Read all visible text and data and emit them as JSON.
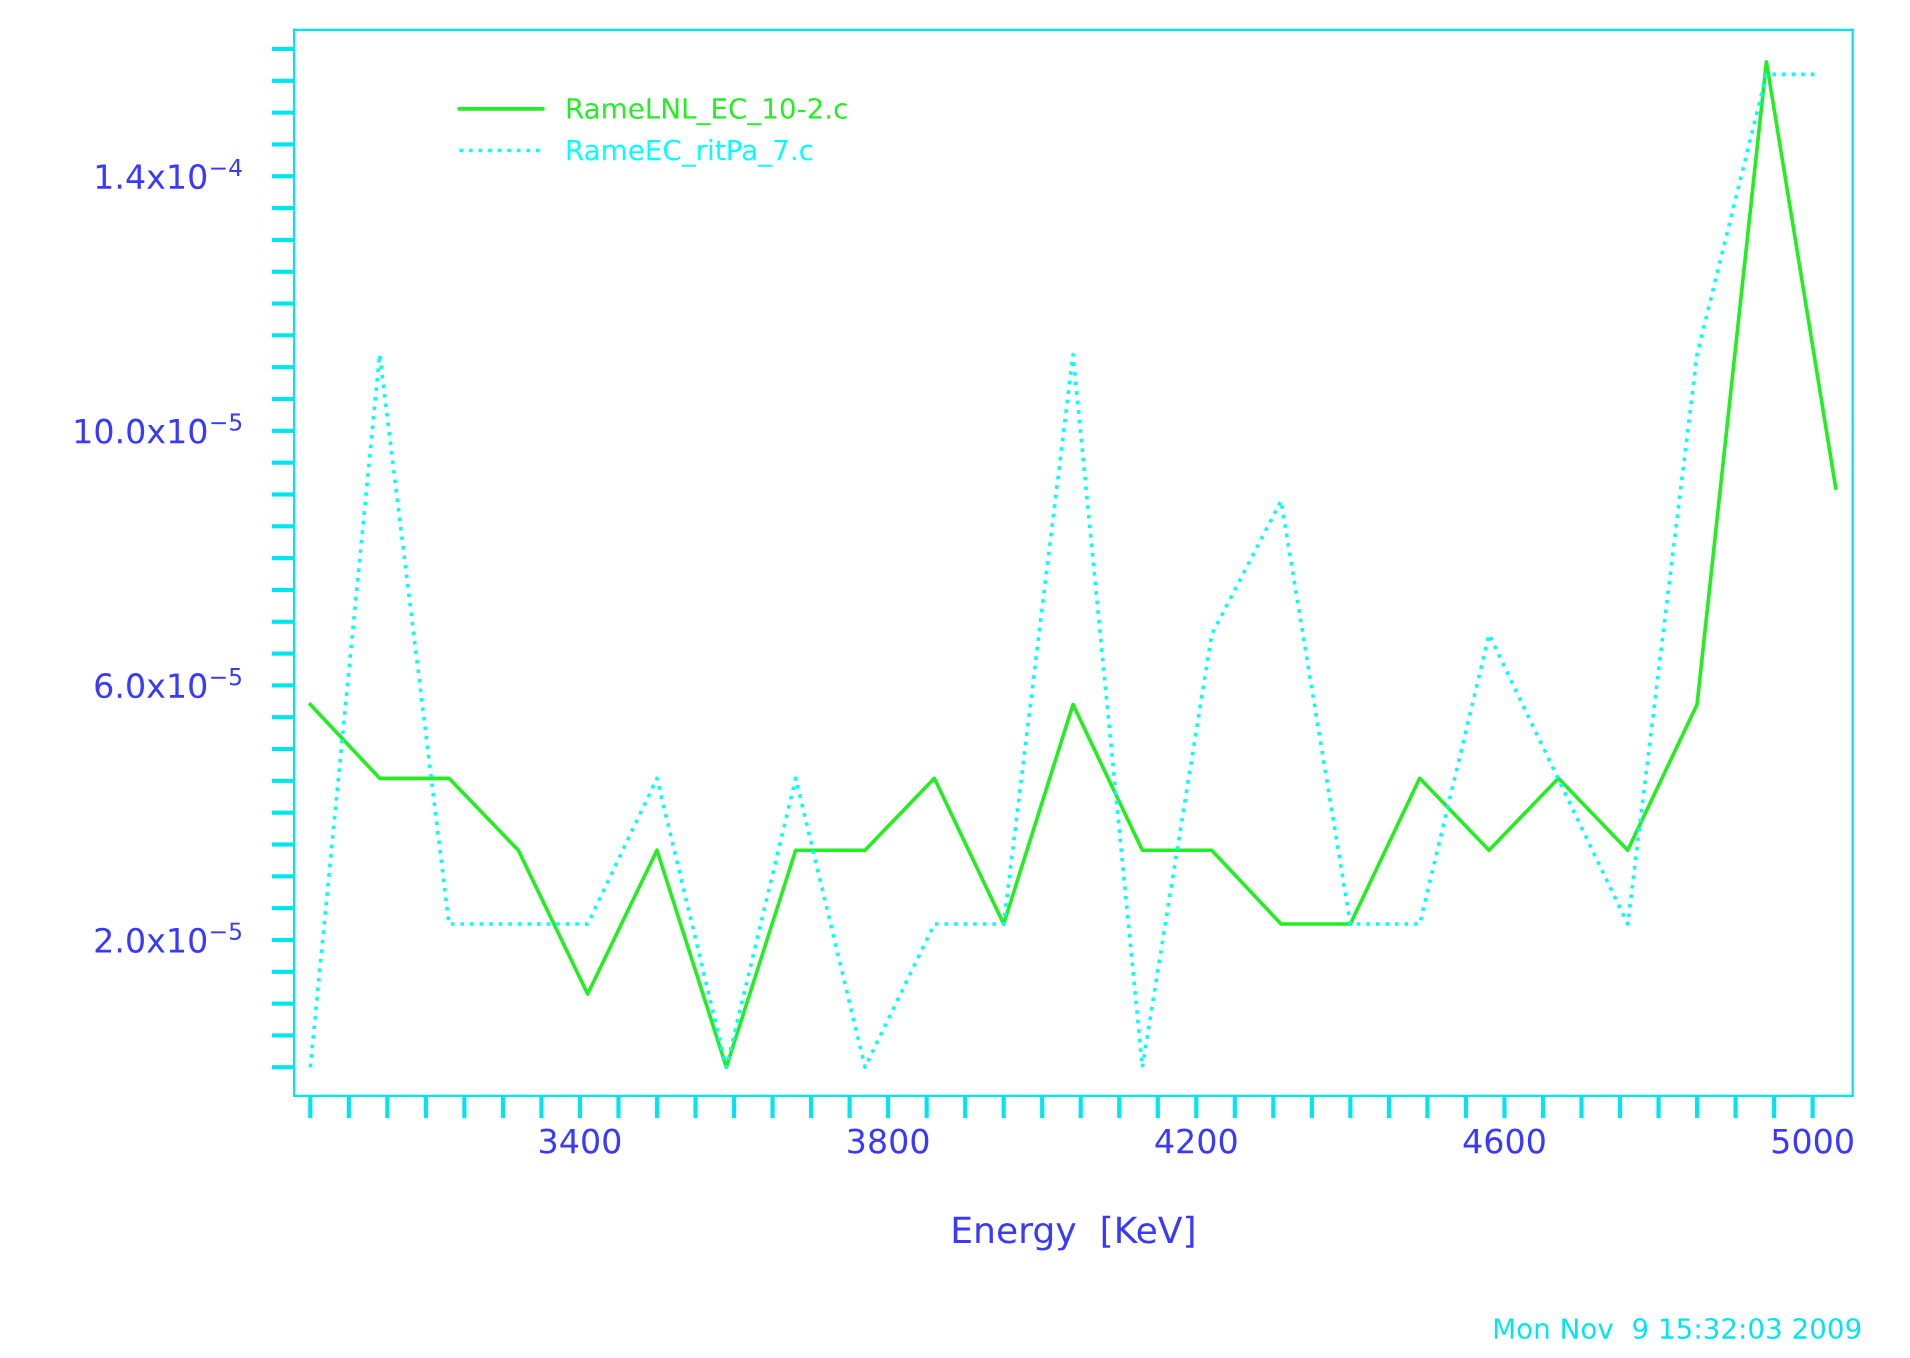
{
  "chart_data": {
    "type": "line",
    "xlabel": "Energy  [KeV]",
    "x": [
      3050,
      3140,
      3230,
      3320,
      3410,
      3500,
      3590,
      3680,
      3770,
      3860,
      3950,
      4040,
      4130,
      4220,
      4310,
      4400,
      4490,
      4580,
      4670,
      4760,
      4850,
      4940,
      5030
    ],
    "series": [
      {
        "name": "RameLNL_EC_10-2.c",
        "color": "#22ee22",
        "line_style": "solid",
        "values": [
          5.7e-05,
          4.54e-05,
          4.54e-05,
          3.41e-05,
          1.15e-05,
          3.41e-05,
          0,
          3.41e-05,
          3.41e-05,
          4.54e-05,
          2.25e-05,
          5.7e-05,
          3.41e-05,
          3.41e-05,
          2.25e-05,
          2.25e-05,
          4.54e-05,
          3.41e-05,
          4.54e-05,
          3.41e-05,
          5.7e-05,
          0.000158,
          9.1e-05
        ]
      },
      {
        "name": "RameEC_ritPa_7.c",
        "color": "#00ffff",
        "line_style": "dotted",
        "x": [
          3050,
          3140,
          3230,
          3320,
          3410,
          3500,
          3590,
          3680,
          3770,
          3860,
          3950,
          4040,
          4130,
          4220,
          4310,
          4400,
          4490,
          4580,
          4760,
          4850,
          4940,
          5010
        ],
        "values": [
          0,
          0.000112,
          2.25e-05,
          2.25e-05,
          2.25e-05,
          4.54e-05,
          0,
          4.54e-05,
          0,
          2.25e-05,
          2.25e-05,
          0.000112,
          0,
          6.8e-05,
          8.9e-05,
          2.25e-05,
          2.25e-05,
          6.8e-05,
          2.25e-05,
          0.000112,
          0.000156,
          0.000156
        ]
      }
    ],
    "xlim": [
      3029,
      5052
    ],
    "xticks": [
      {
        "value": 3050,
        "label": null
      },
      {
        "value": 3100,
        "label": null
      },
      {
        "value": 3150,
        "label": null
      },
      {
        "value": 3200,
        "label": null
      },
      {
        "value": 3250,
        "label": null
      },
      {
        "value": 3300,
        "label": null
      },
      {
        "value": 3350,
        "label": null
      },
      3400,
      {
        "value": 3450,
        "label": null
      },
      {
        "value": 3500,
        "label": null
      },
      {
        "value": 3550,
        "label": null
      },
      {
        "value": 3600,
        "label": null
      },
      {
        "value": 3650,
        "label": null
      },
      {
        "value": 3700,
        "label": null
      },
      {
        "value": 3750,
        "label": null
      },
      3800,
      {
        "value": 3850,
        "label": null
      },
      {
        "value": 3900,
        "label": null
      },
      {
        "value": 3950,
        "label": null
      },
      {
        "value": 4000,
        "label": null
      },
      {
        "value": 4050,
        "label": null
      },
      {
        "value": 4100,
        "label": null
      },
      {
        "value": 4150,
        "label": null
      },
      4200,
      {
        "value": 4250,
        "label": null
      },
      {
        "value": 4300,
        "label": null
      },
      {
        "value": 4350,
        "label": null
      },
      {
        "value": 4400,
        "label": null
      },
      {
        "value": 4450,
        "label": null
      },
      {
        "value": 4500,
        "label": null
      },
      {
        "value": 4550,
        "label": null
      },
      4600,
      {
        "value": 4650,
        "label": null
      },
      {
        "value": 4700,
        "label": null
      },
      {
        "value": 4750,
        "label": null
      },
      {
        "value": 4800,
        "label": null
      },
      {
        "value": 4850,
        "label": null
      },
      {
        "value": 4900,
        "label": null
      },
      {
        "value": 4950,
        "label": null
      },
      5000
    ],
    "ylim": [
      -4.5e-06,
      0.000163
    ],
    "yticks": [
      {
        "value": 0,
        "label": null
      },
      {
        "value": 5e-06,
        "label": null
      },
      {
        "value": 1e-05,
        "label": null
      },
      {
        "value": 1.5e-05,
        "label": null
      },
      {
        "value": 2e-05,
        "label": "2.0x10$^{−5}$"
      },
      {
        "value": 2.5e-05,
        "label": null
      },
      {
        "value": 3e-05,
        "label": null
      },
      {
        "value": 3.5e-05,
        "label": null
      },
      {
        "value": 4e-05,
        "label": null
      },
      {
        "value": 4.5e-05,
        "label": null
      },
      {
        "value": 5e-05,
        "label": null
      },
      {
        "value": 5.5e-05,
        "label": null
      },
      {
        "value": 6e-05,
        "label": "6.0x10$^{−5}$"
      },
      {
        "value": 6.5e-05,
        "label": null
      },
      {
        "value": 7e-05,
        "label": null
      },
      {
        "value": 7.5e-05,
        "label": null
      },
      {
        "value": 8e-05,
        "label": null
      },
      {
        "value": 8.5e-05,
        "label": null
      },
      {
        "value": 9e-05,
        "label": null
      },
      {
        "value": 9.5e-05,
        "label": null
      },
      {
        "value": 0.0001,
        "label": "10.0x10$^{−5}$"
      },
      {
        "value": 0.000105,
        "label": null
      },
      {
        "value": 0.00011,
        "label": null
      },
      {
        "value": 0.000115,
        "label": null
      },
      {
        "value": 0.00012,
        "label": null
      },
      {
        "value": 0.000125,
        "label": null
      },
      {
        "value": 0.00013,
        "label": null
      },
      {
        "value": 0.000135,
        "label": null
      },
      {
        "value": 0.00014,
        "label": "1.4x10$^{−4}$"
      },
      {
        "value": 0.000145,
        "label": null
      },
      {
        "value": 0.00015,
        "label": null
      },
      {
        "value": 0.000155,
        "label": null
      },
      {
        "value": 0.00016,
        "label": null
      }
    ],
    "grid": false,
    "legend": "top left",
    "marker": "none",
    "annotations": [
      "Mon Nov  9 15:32:03 2009"
    ]
  }
}
